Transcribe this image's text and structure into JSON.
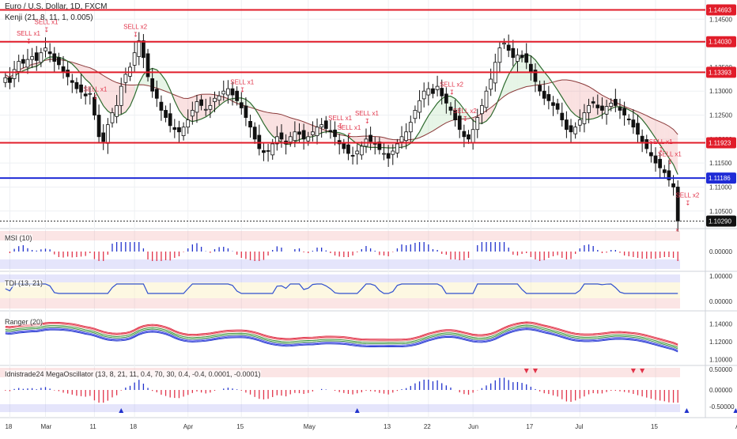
{
  "header": {
    "symbol_line": "Euro / U.S. Dollar, 1D, FXCM",
    "indicator_line": "Kenji (21, 8, 11, 1, 0.005)"
  },
  "panes": {
    "msi": "MSI (10)",
    "tdi": "TDI (13, 21)",
    "ranger": "Ranger (20)",
    "mega": "Idnistrade24 MegaOscillator (13, 8, 21, 11, 0.4, 70, 30, 0.4, -0.4, 0.0001, -0.0001)"
  },
  "colors": {
    "up": "#ffffff",
    "down": "#111111",
    "red_line": "#e11d2a",
    "blue_line": "#1f2bd6",
    "signal": "#e1344a"
  },
  "chart_data": {
    "type": "candlestick",
    "timeframe": "1D",
    "symbol": "EURUSD",
    "y_ticks": [
      "1.14500",
      "1.14000",
      "1.13500",
      "1.13000",
      "1.12500",
      "1.12000",
      "1.11500",
      "1.11000",
      "1.10500"
    ],
    "ylim": [
      1.1015,
      1.149
    ],
    "x_labels": [
      "18",
      "Mar",
      "11",
      "18",
      "Apr",
      "15",
      "May",
      "13",
      "22",
      "Jun",
      "17",
      "Jul",
      "15",
      "Aug"
    ],
    "x_label_index": [
      1,
      9,
      20,
      29,
      41,
      53,
      68,
      86,
      95,
      105,
      118,
      129,
      146,
      165
    ],
    "levels": [
      {
        "label": "1.14693",
        "value": 1.14693,
        "color": "red"
      },
      {
        "label": "1.14030",
        "value": 1.1403,
        "color": "red"
      },
      {
        "label": "1.13393",
        "value": 1.13393,
        "color": "red"
      },
      {
        "label": "1.11923",
        "value": 1.11923,
        "color": "red"
      },
      {
        "label": "1.11186",
        "value": 1.11186,
        "color": "blue"
      },
      {
        "label": "1.10290",
        "value": 1.1029,
        "color": "dark"
      }
    ],
    "signals": [
      {
        "text": "SELL x1",
        "i": 5
      },
      {
        "text": "SELL x1",
        "i": 9
      },
      {
        "text": "SELL x1",
        "i": 20
      },
      {
        "text": "SELL x2",
        "i": 29
      },
      {
        "text": "SELL x1",
        "i": 53
      },
      {
        "text": "SELL x1",
        "i": 75
      },
      {
        "text": "SELL x1",
        "i": 77
      },
      {
        "text": "SELL x1",
        "i": 81
      },
      {
        "text": "SELL x2",
        "i": 100
      },
      {
        "text": "SELL x2",
        "i": 103
      },
      {
        "text": "SELL x1",
        "i": 147
      },
      {
        "text": "SELL x1",
        "i": 149
      },
      {
        "text": "SELL x2",
        "i": 153
      }
    ],
    "pane_ticks": {
      "msi": [
        "0.00000"
      ],
      "tdi": [
        "1.00000",
        "0.00000"
      ],
      "ranger": [
        "1.14000",
        "1.12000",
        "1.10000"
      ],
      "mega": [
        "0.50000",
        "0.00000",
        "-0.50000"
      ]
    },
    "close": [
      1.1328,
      1.1318,
      1.1345,
      1.1362,
      1.1358,
      1.1366,
      1.1372,
      1.1364,
      1.138,
      1.139,
      1.1378,
      1.1362,
      1.1355,
      1.134,
      1.133,
      1.1318,
      1.1305,
      1.1298,
      1.129,
      1.1295,
      1.125,
      1.1205,
      1.1195,
      1.123,
      1.1255,
      1.127,
      1.131,
      1.1335,
      1.135,
      1.138,
      1.1405,
      1.137,
      1.133,
      1.13,
      1.1285,
      1.126,
      1.1245,
      1.1228,
      1.122,
      1.1215,
      1.1225,
      1.124,
      1.126,
      1.1278,
      1.127,
      1.1262,
      1.127,
      1.1285,
      1.129,
      1.13,
      1.1305,
      1.1292,
      1.128,
      1.1265,
      1.1245,
      1.1225,
      1.12,
      1.118,
      1.1172,
      1.1175,
      1.119,
      1.1205,
      1.12,
      1.119,
      1.1205,
      1.1215,
      1.121,
      1.12,
      1.1205,
      1.1215,
      1.1225,
      1.123,
      1.1222,
      1.1215,
      1.1205,
      1.119,
      1.118,
      1.117,
      1.1165,
      1.1175,
      1.1185,
      1.12,
      1.1195,
      1.119,
      1.1178,
      1.117,
      1.116,
      1.1175,
      1.119,
      1.1205,
      1.1215,
      1.1235,
      1.126,
      1.128,
      1.13,
      1.1305,
      1.1295,
      1.131,
      1.129,
      1.1275,
      1.126,
      1.124,
      1.122,
      1.1205,
      1.12,
      1.122,
      1.1245,
      1.127,
      1.13,
      1.1325,
      1.136,
      1.139,
      1.14,
      1.1385,
      1.137,
      1.1375,
      1.137,
      1.136,
      1.134,
      1.132,
      1.13,
      1.1285,
      1.128,
      1.127,
      1.1262,
      1.124,
      1.122,
      1.1215,
      1.1225,
      1.124,
      1.1255,
      1.127,
      1.1275,
      1.1265,
      1.126,
      1.1268,
      1.1275,
      1.127,
      1.126,
      1.125,
      1.124,
      1.1225,
      1.121,
      1.1195,
      1.118,
      1.1165,
      1.115,
      1.114,
      1.113,
      1.1115,
      1.11,
      1.1029
    ]
  }
}
